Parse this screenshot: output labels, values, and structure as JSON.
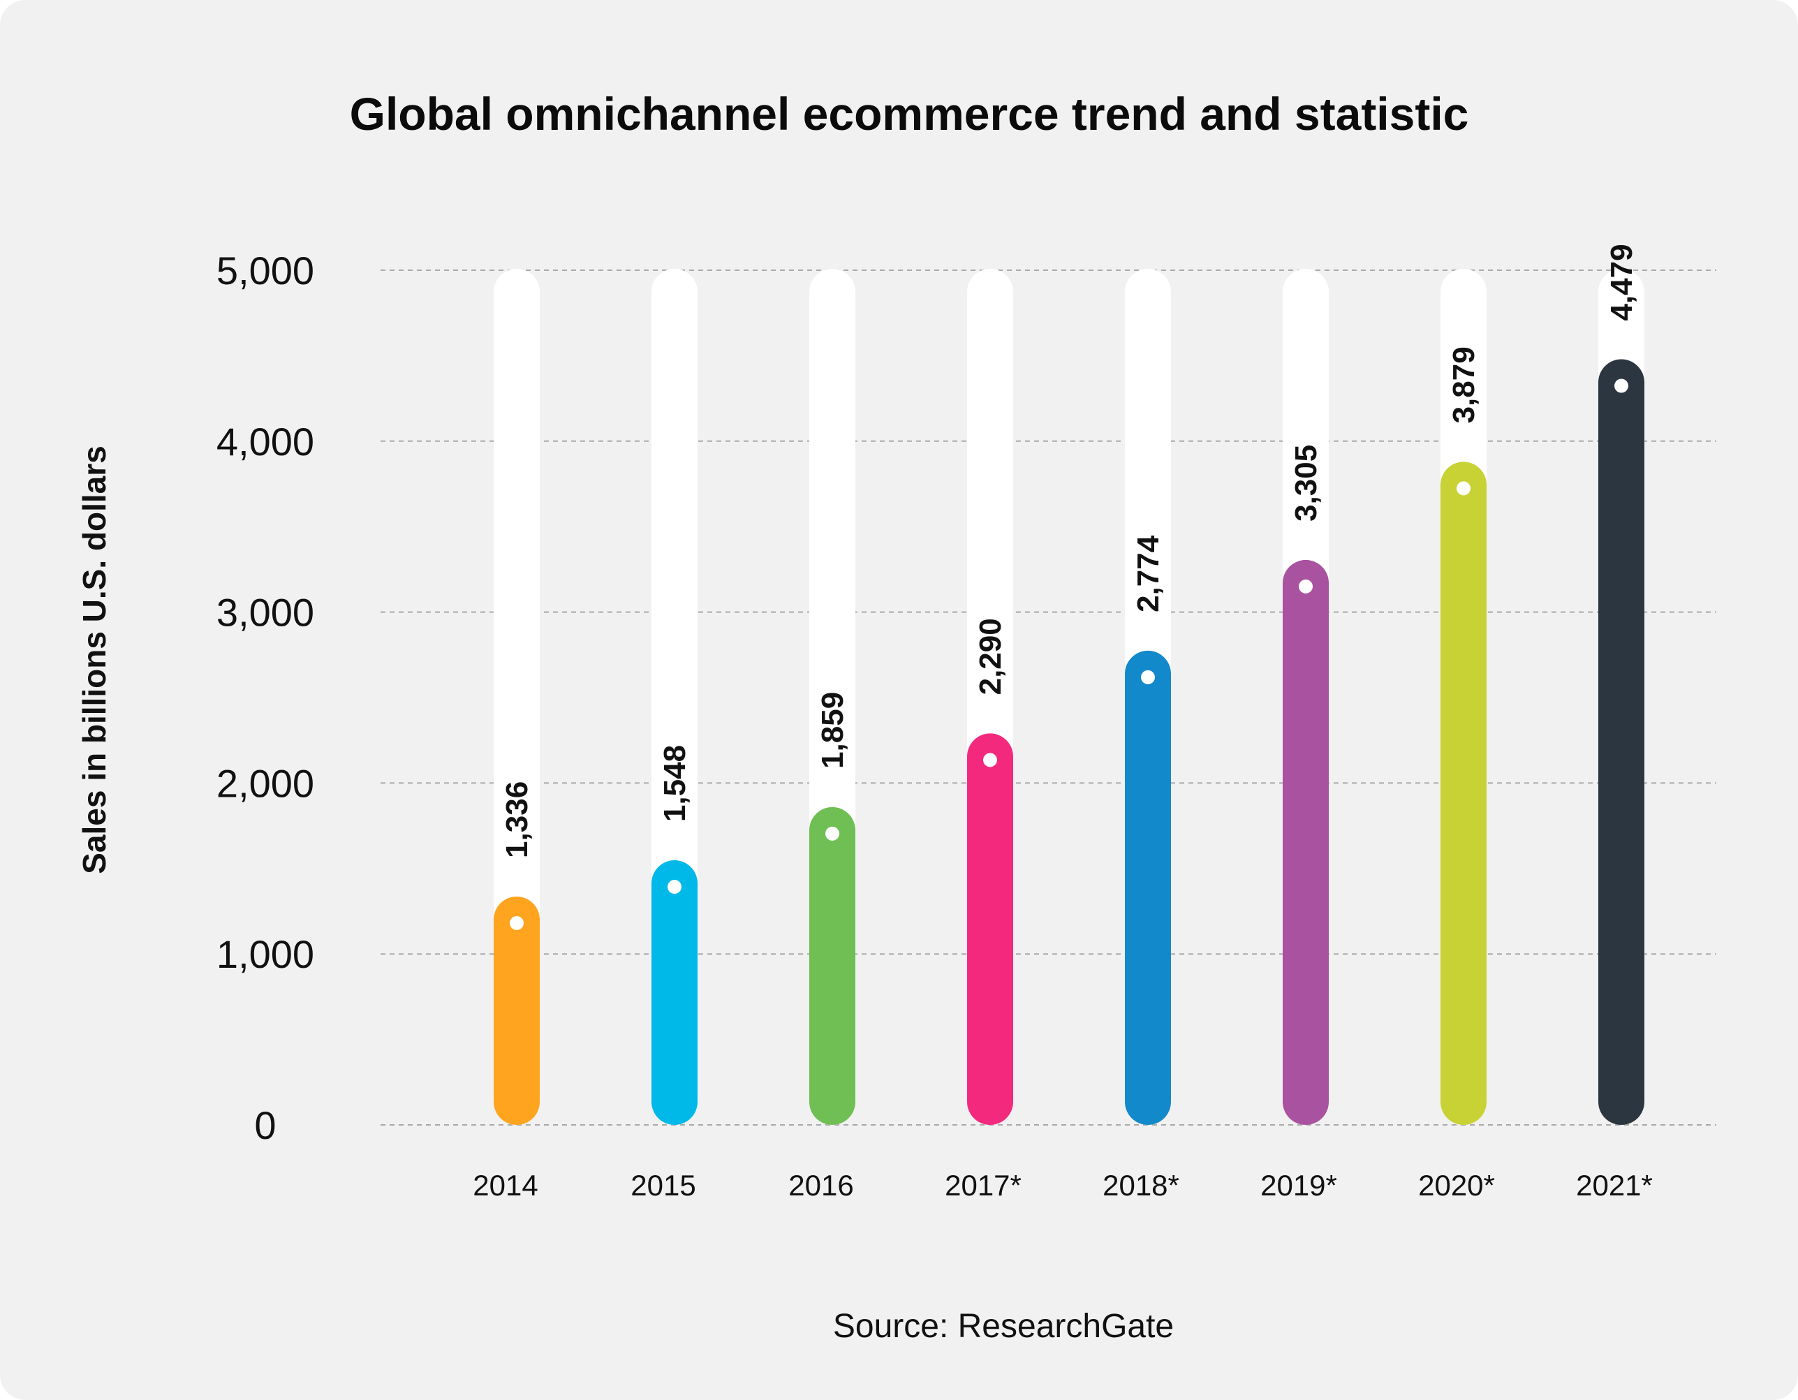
{
  "chart_data": {
    "type": "bar",
    "title": "Global omnichannel ecommerce trend and statistic",
    "ylabel": "Sales in billions U.S. dollars",
    "xlabel": "",
    "categories": [
      "2014",
      "2015",
      "2016",
      "2017*",
      "2018*",
      "2019*",
      "2020*",
      "2021*"
    ],
    "values": [
      1336,
      1548,
      1859,
      2290,
      2774,
      3305,
      3879,
      4479
    ],
    "value_labels": [
      "1,336",
      "1,548",
      "1,859",
      "2,290",
      "2,774",
      "3,305",
      "3,879",
      "4,479"
    ],
    "colors": [
      "#ffa41f",
      "#00b9e8",
      "#70bf54",
      "#f3297e",
      "#1289cb",
      "#a9529f",
      "#c8d235",
      "#2c3640"
    ],
    "track_color": "#ffffff",
    "ylim": [
      0,
      5000
    ],
    "yticks": [
      0,
      1000,
      2000,
      3000,
      4000,
      5000
    ],
    "ytick_labels": [
      "0",
      "1,000",
      "2,000",
      "3,000",
      "4,000",
      "5,000"
    ],
    "grid": true,
    "legend": "none",
    "source": "Source: ResearchGate"
  }
}
